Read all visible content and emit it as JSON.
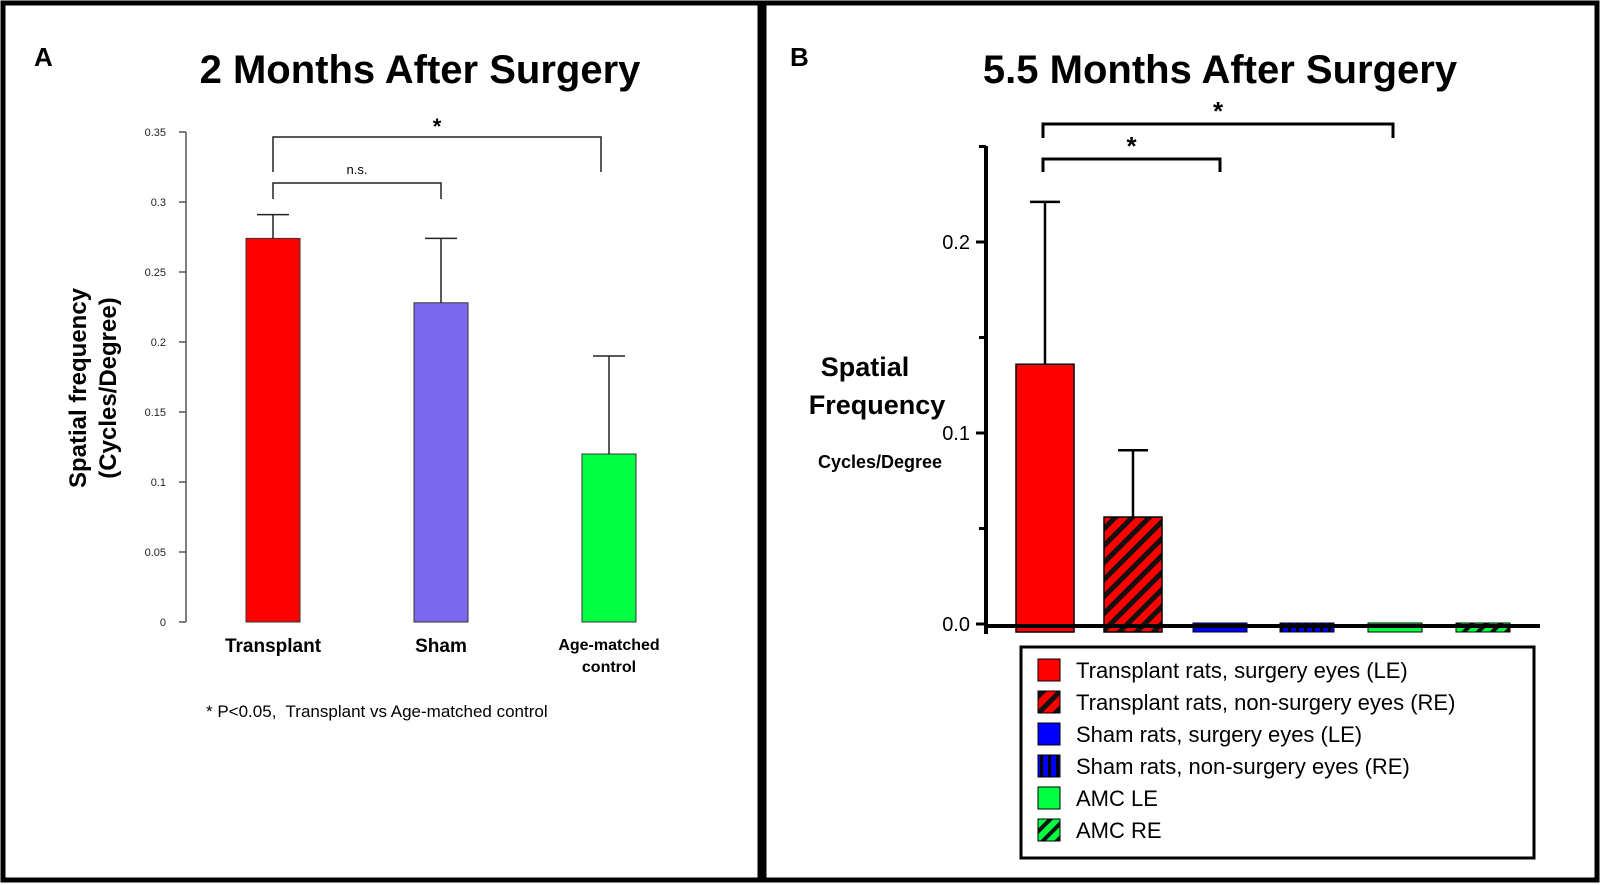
{
  "colors": {
    "red": "#ff0000",
    "purple": "#7b68ee",
    "green": "#00ff40",
    "blue": "#0000ff",
    "black": "#000000"
  },
  "chart_data": [
    {
      "panel": "A",
      "type": "bar",
      "title": "2 Months After Surgery",
      "ylabel": [
        "Spatial frequency",
        "(Cycles/Degree)"
      ],
      "xlabel": "",
      "ylim": [
        0,
        0.35
      ],
      "yticks": [
        "0",
        "0.05",
        "0.1",
        "0.15",
        "0.2",
        "0.25",
        "0.3",
        "0.35"
      ],
      "categories": [
        [
          "Transplant"
        ],
        [
          "Sham"
        ],
        [
          "Age-matched",
          "control"
        ]
      ],
      "values": [
        0.274,
        0.228,
        0.12
      ],
      "errors": [
        0.017,
        0.046,
        0.07
      ],
      "colors": [
        "#ff0000",
        "#7b68ee",
        "#00ff40"
      ],
      "significance": [
        {
          "from": 0,
          "to": 1,
          "label": "n.s."
        },
        {
          "from": 0,
          "to": 2,
          "label": "*"
        }
      ],
      "footnote": "* P<0.05,  Transplant vs Age-matched control",
      "grid": false
    },
    {
      "panel": "B",
      "type": "bar",
      "title": "5.5 Months After Surgery",
      "ylabel": [
        "Spatial",
        "Frequency"
      ],
      "ylabel_units": "Cycles/Degree",
      "ylim": [
        -0.004,
        0.25
      ],
      "yticks": [
        "0.0",
        "0.1",
        "0.2"
      ],
      "series": [
        {
          "name": "Transplant rats, surgery eyes (LE)",
          "value": 0.136,
          "error": 0.085,
          "color": "#ff0000",
          "pattern": "solid"
        },
        {
          "name": "Transplant rats, non-surgery eyes (RE)",
          "value": 0.056,
          "error": 0.035,
          "color": "#ff0000",
          "pattern": "diagonal"
        },
        {
          "name": "Sham rats, surgery eyes (LE)",
          "value": 0,
          "error": 0,
          "color": "#0000ff",
          "pattern": "solid"
        },
        {
          "name": "Sham rats, non-surgery eyes (RE)",
          "value": 0,
          "error": 0,
          "color": "#0000ff",
          "pattern": "vertical"
        },
        {
          "name": "AMC LE",
          "value": 0,
          "error": 0,
          "color": "#00ff40",
          "pattern": "solid"
        },
        {
          "name": "AMC RE",
          "value": 0,
          "error": 0,
          "color": "#00ff40",
          "pattern": "diagonal"
        }
      ],
      "significance": [
        {
          "from": 0,
          "to": 2,
          "label": "*"
        },
        {
          "from": 0,
          "to": 4,
          "label": "*"
        }
      ],
      "legend": "bottom-right",
      "grid": false
    }
  ]
}
